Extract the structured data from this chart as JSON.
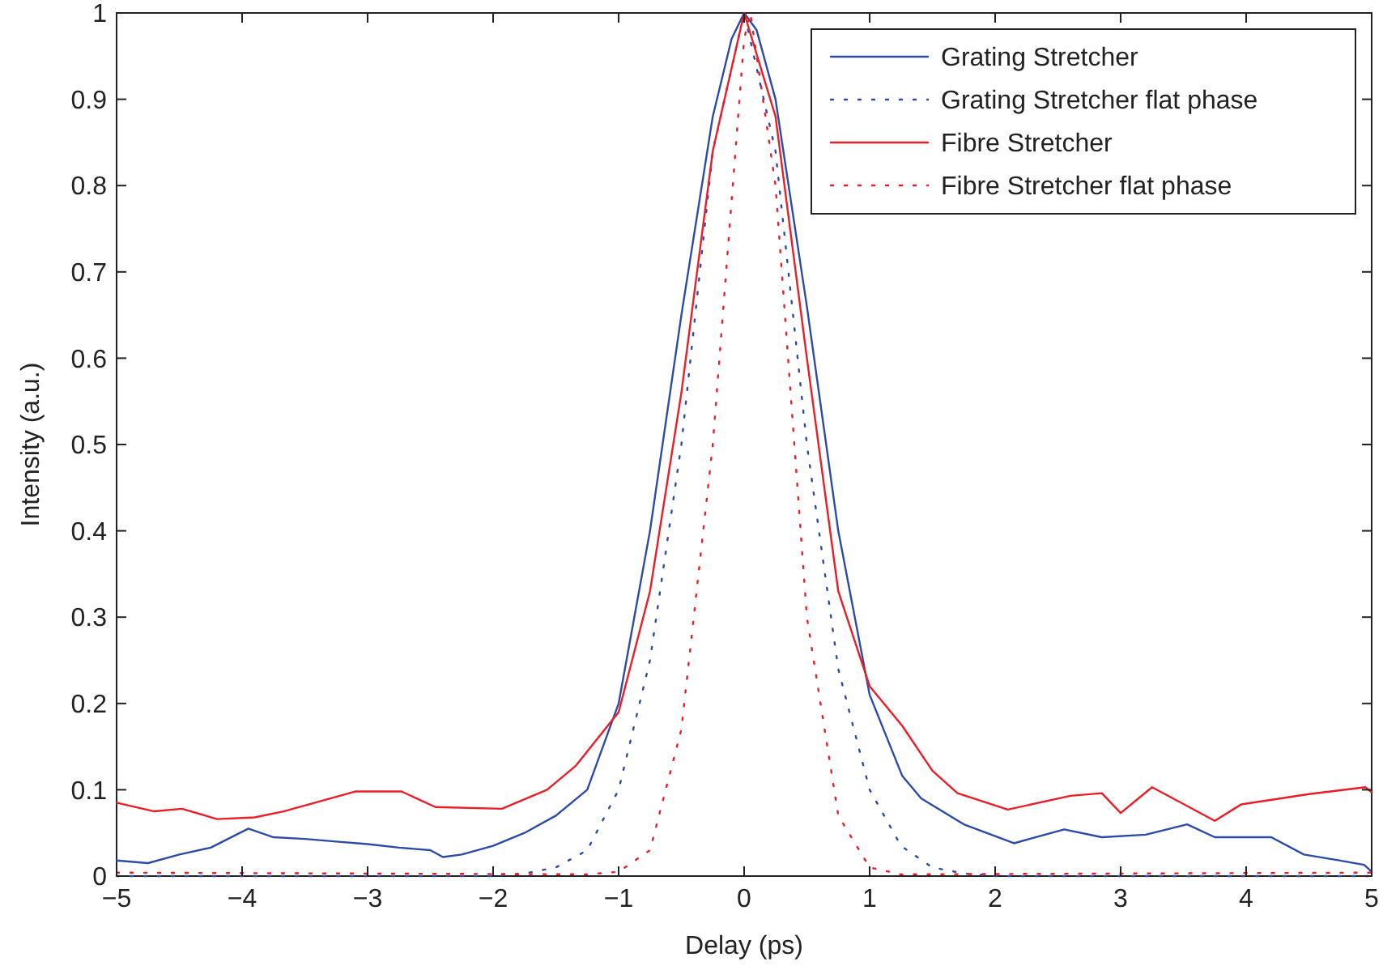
{
  "chart_data": {
    "type": "line",
    "xlabel": "Delay (ps)",
    "ylabel": "Intensity (a.u.)",
    "xlim": [
      -5,
      5
    ],
    "ylim": [
      0,
      1
    ],
    "xticks": [
      -5,
      -4,
      -3,
      -2,
      -1,
      0,
      1,
      2,
      3,
      4,
      5
    ],
    "yticks": [
      0,
      0.1,
      0.2,
      0.3,
      0.4,
      0.5,
      0.6,
      0.7,
      0.8,
      0.9,
      1
    ],
    "grid": false,
    "legend": "top right",
    "series": [
      {
        "name": "Grating Stretcher",
        "color": "#2b4bab",
        "line_style": "solid",
        "x": [
          -5,
          -4.75,
          -4.5,
          -4.25,
          -3.95,
          -3.75,
          -3.5,
          -3.25,
          -3,
          -2.75,
          -2.5,
          -2.4,
          -2.25,
          -2,
          -1.75,
          -1.5,
          -1.25,
          -1,
          -0.75,
          -0.5,
          -0.25,
          -0.1,
          0,
          0.1,
          0.25,
          0.5,
          0.75,
          1,
          1.26,
          1.41,
          1.75,
          2.15,
          2.55,
          2.85,
          3.2,
          3.53,
          3.75,
          4.2,
          4.46,
          4.75,
          4.94,
          5
        ],
        "values": [
          0.018,
          0.015,
          0.025,
          0.033,
          0.055,
          0.045,
          0.043,
          0.04,
          0.037,
          0.033,
          0.03,
          0.022,
          0.025,
          0.035,
          0.05,
          0.07,
          0.1,
          0.2,
          0.4,
          0.65,
          0.88,
          0.97,
          1,
          0.98,
          0.9,
          0.66,
          0.4,
          0.21,
          0.116,
          0.09,
          0.06,
          0.038,
          0.054,
          0.045,
          0.048,
          0.06,
          0.045,
          0.045,
          0.025,
          0.018,
          0.013,
          0.005
        ]
      },
      {
        "name": "Grating Stretcher flat phase",
        "color": "#2b4bab",
        "line_style": "dotted",
        "x": [
          -5,
          -2,
          -1.75,
          -1.5,
          -1.25,
          -1,
          -0.75,
          -0.5,
          -0.25,
          0,
          0.25,
          0.5,
          0.75,
          1,
          1.25,
          1.5,
          1.75,
          2,
          5
        ],
        "values": [
          0,
          0,
          0.003,
          0.01,
          0.03,
          0.1,
          0.25,
          0.5,
          0.84,
          1,
          0.84,
          0.5,
          0.24,
          0.1,
          0.035,
          0.01,
          0.003,
          0,
          0
        ]
      },
      {
        "name": "Fibre Stretcher",
        "color": "#ee1c25",
        "line_style": "solid",
        "x": [
          -5,
          -4.7,
          -4.48,
          -4.2,
          -3.9,
          -3.67,
          -3.1,
          -2.73,
          -2.46,
          -1.93,
          -1.57,
          -1.34,
          -1,
          -0.75,
          -0.5,
          -0.25,
          0,
          0.25,
          0.5,
          0.75,
          1,
          1.26,
          1.5,
          1.7,
          2.1,
          2.6,
          2.85,
          3,
          3.25,
          3.75,
          3.96,
          4.5,
          4.95,
          5
        ],
        "values": [
          0.085,
          0.075,
          0.078,
          0.066,
          0.068,
          0.075,
          0.098,
          0.098,
          0.08,
          0.078,
          0.1,
          0.128,
          0.19,
          0.33,
          0.56,
          0.84,
          1,
          0.88,
          0.6,
          0.33,
          0.22,
          0.174,
          0.122,
          0.096,
          0.077,
          0.093,
          0.096,
          0.073,
          0.103,
          0.064,
          0.083,
          0.095,
          0.103,
          0.097
        ]
      },
      {
        "name": "Fibre Stretcher flat phase",
        "color": "#ee1c25",
        "line_style": "dotted",
        "x": [
          -5,
          -1.25,
          -1,
          -0.75,
          -0.5,
          -0.25,
          0,
          0.05,
          0.25,
          0.5,
          0.75,
          1,
          1.25,
          5
        ],
        "values": [
          0.004,
          0.002,
          0.005,
          0.03,
          0.17,
          0.5,
          0.97,
          1,
          0.8,
          0.3,
          0.07,
          0.01,
          0.002,
          0.004
        ]
      }
    ]
  }
}
